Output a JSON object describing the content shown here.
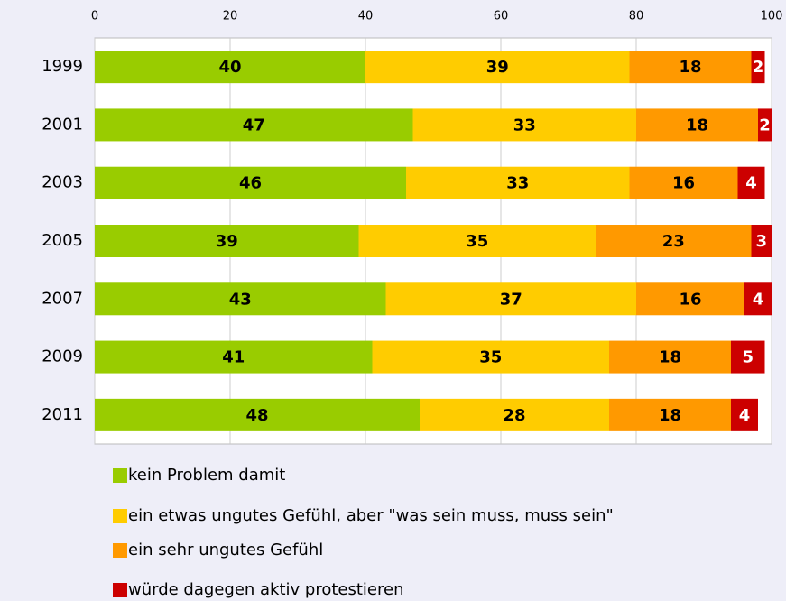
{
  "chart_data": {
    "type": "stacked_bar_horizontal",
    "categories": [
      "1999",
      "2001",
      "2003",
      "2005",
      "2007",
      "2009",
      "2011"
    ],
    "series": [
      {
        "name": "kein Problem damit",
        "color": "#99cc00",
        "label_color": "#000000",
        "values": [
          40,
          47,
          46,
          39,
          43,
          41,
          48
        ]
      },
      {
        "name": "ein etwas ungutes Gefühl, aber \"was sein muss, muss sein\"",
        "color": "#ffcc00",
        "label_color": "#000000",
        "values": [
          39,
          33,
          33,
          35,
          37,
          35,
          28
        ]
      },
      {
        "name": "ein sehr ungutes Gefühl",
        "color": "#ff9900",
        "label_color": "#000000",
        "values": [
          18,
          18,
          16,
          23,
          16,
          18,
          18
        ]
      },
      {
        "name": "würde dagegen aktiv protestieren",
        "color": "#cc0000",
        "label_color": "#ffffff",
        "values": [
          2,
          2,
          4,
          3,
          4,
          5,
          4
        ]
      }
    ],
    "xlim": [
      0,
      100
    ],
    "xticks": [
      0,
      20,
      40,
      60,
      80,
      100
    ],
    "grid": true
  }
}
